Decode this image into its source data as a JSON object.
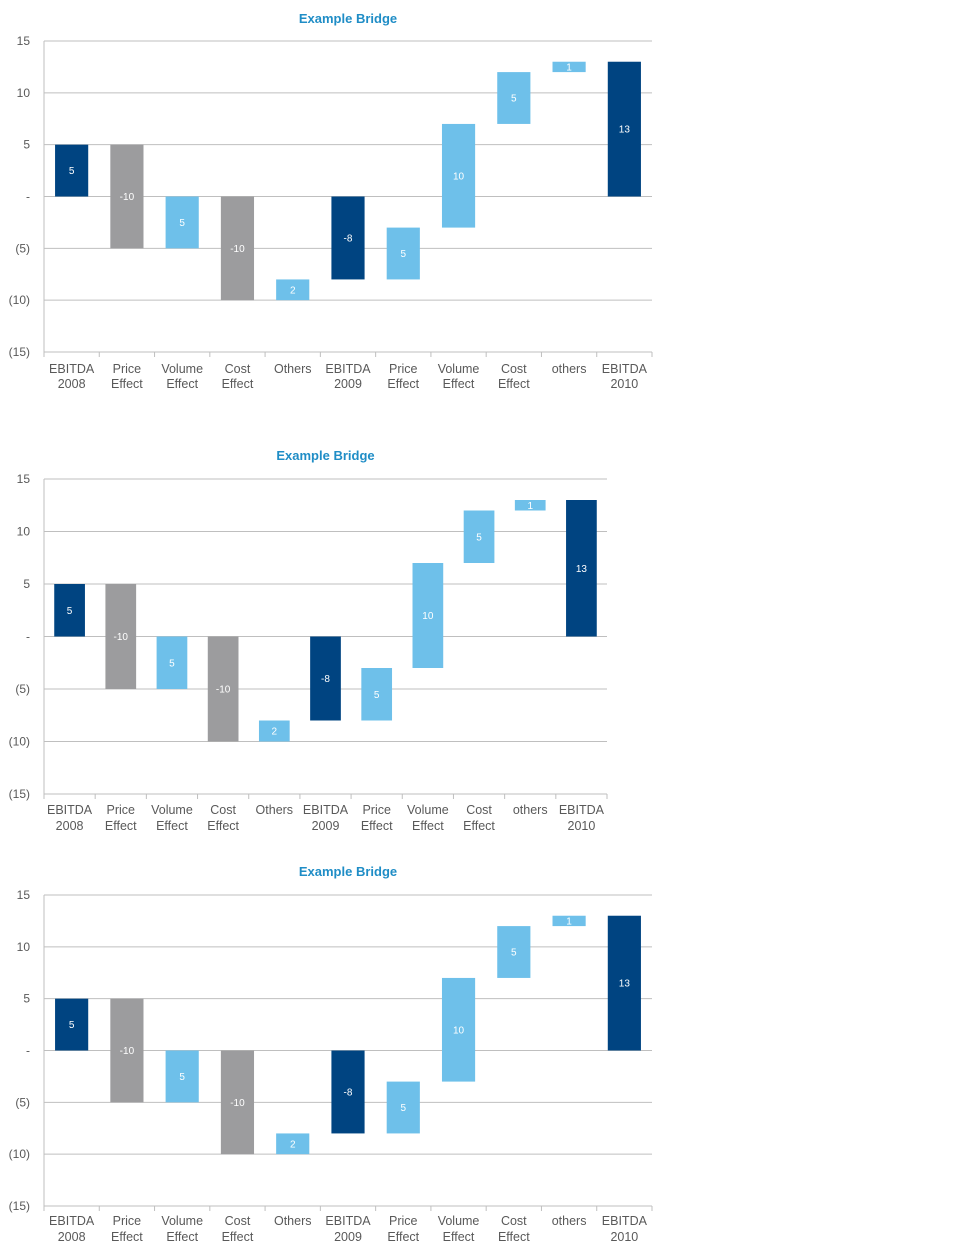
{
  "colors": {
    "title": "#1f8dc6",
    "ebitda": "#004481",
    "negative": "#9c9c9e",
    "positive": "#6ec0ea",
    "grid": "#bfbfbf",
    "text": "#595959"
  },
  "chart_data": [
    {
      "type": "bar",
      "subtype": "waterfall",
      "title": "Example Bridge",
      "ylim": [
        -15,
        15
      ],
      "yticks": [
        15,
        10,
        5,
        0,
        -5,
        -10,
        -15
      ],
      "ytick_labels": [
        "15",
        "10",
        "5",
        "-",
        "(5)",
        "(10)",
        "(15)"
      ],
      "grid": true,
      "categories": [
        [
          "EBITDA",
          "2008"
        ],
        [
          "Price",
          "Effect"
        ],
        [
          "Volume",
          "Effect"
        ],
        [
          "Cost",
          "Effect"
        ],
        [
          "Others"
        ],
        [
          "EBITDA",
          "2009"
        ],
        [
          "Price",
          "Effect"
        ],
        [
          "Volume",
          "Effect"
        ],
        [
          "Cost",
          "Effect"
        ],
        [
          "others"
        ],
        [
          "EBITDA",
          "2010"
        ]
      ],
      "bars": [
        {
          "low": 0,
          "high": 5,
          "label": "5",
          "kind": "ebitda"
        },
        {
          "low": -5,
          "high": 5,
          "label": "-10",
          "kind": "negative"
        },
        {
          "low": -5,
          "high": 0,
          "label": "5",
          "kind": "positive"
        },
        {
          "low": -10,
          "high": 0,
          "label": "-10",
          "kind": "negative"
        },
        {
          "low": -10,
          "high": -8,
          "label": "2",
          "kind": "positive"
        },
        {
          "low": -8,
          "high": 0,
          "label": "-8",
          "kind": "ebitda"
        },
        {
          "low": -8,
          "high": -3,
          "label": "5",
          "kind": "positive"
        },
        {
          "low": -3,
          "high": 7,
          "label": "10",
          "kind": "positive"
        },
        {
          "low": 7,
          "high": 12,
          "label": "5",
          "kind": "positive"
        },
        {
          "low": 12,
          "high": 13,
          "label": "1",
          "kind": "positive"
        },
        {
          "low": 0,
          "high": 13,
          "label": "13",
          "kind": "ebitda"
        }
      ]
    },
    {
      "type": "bar",
      "subtype": "waterfall",
      "title": "Example Bridge",
      "ylim": [
        -15,
        15
      ],
      "yticks": [
        15,
        10,
        5,
        0,
        -5,
        -10,
        -15
      ],
      "ytick_labels": [
        "15",
        "10",
        "5",
        "-",
        "(5)",
        "(10)",
        "(15)"
      ],
      "grid": true,
      "categories": [
        [
          "EBITDA",
          "2008"
        ],
        [
          "Price",
          "Effect"
        ],
        [
          "Volume",
          "Effect"
        ],
        [
          "Cost",
          "Effect"
        ],
        [
          "Others"
        ],
        [
          "EBITDA",
          "2009"
        ],
        [
          "Price",
          "Effect"
        ],
        [
          "Volume",
          "Effect"
        ],
        [
          "Cost",
          "Effect"
        ],
        [
          "others"
        ],
        [
          "EBITDA",
          "2010"
        ]
      ],
      "bars": [
        {
          "low": 0,
          "high": 5,
          "label": "5",
          "kind": "ebitda"
        },
        {
          "low": -5,
          "high": 5,
          "label": "-10",
          "kind": "negative"
        },
        {
          "low": -5,
          "high": 0,
          "label": "5",
          "kind": "positive"
        },
        {
          "low": -10,
          "high": 0,
          "label": "-10",
          "kind": "negative"
        },
        {
          "low": -10,
          "high": -8,
          "label": "2",
          "kind": "positive"
        },
        {
          "low": -8,
          "high": 0,
          "label": "-8",
          "kind": "ebitda"
        },
        {
          "low": -8,
          "high": -3,
          "label": "5",
          "kind": "positive"
        },
        {
          "low": -3,
          "high": 7,
          "label": "10",
          "kind": "positive"
        },
        {
          "low": 7,
          "high": 12,
          "label": "5",
          "kind": "positive"
        },
        {
          "low": 12,
          "high": 13,
          "label": "1",
          "kind": "positive"
        },
        {
          "low": 0,
          "high": 13,
          "label": "13",
          "kind": "ebitda"
        }
      ]
    },
    {
      "type": "bar",
      "subtype": "waterfall",
      "title": "Example Bridge",
      "ylim": [
        -15,
        15
      ],
      "yticks": [
        15,
        10,
        5,
        0,
        -5,
        -10,
        -15
      ],
      "ytick_labels": [
        "15",
        "10",
        "5",
        "-",
        "(5)",
        "(10)",
        "(15)"
      ],
      "grid": true,
      "categories": [
        [
          "EBITDA",
          "2008"
        ],
        [
          "Price",
          "Effect"
        ],
        [
          "Volume",
          "Effect"
        ],
        [
          "Cost",
          "Effect"
        ],
        [
          "Others"
        ],
        [
          "EBITDA",
          "2009"
        ],
        [
          "Price",
          "Effect"
        ],
        [
          "Volume",
          "Effect"
        ],
        [
          "Cost",
          "Effect"
        ],
        [
          "others"
        ],
        [
          "EBITDA",
          "2010"
        ]
      ],
      "bars": [
        {
          "low": 0,
          "high": 5,
          "label": "5",
          "kind": "ebitda"
        },
        {
          "low": -5,
          "high": 5,
          "label": "-10",
          "kind": "negative"
        },
        {
          "low": -5,
          "high": 0,
          "label": "5",
          "kind": "positive"
        },
        {
          "low": -10,
          "high": 0,
          "label": "-10",
          "kind": "negative"
        },
        {
          "low": -10,
          "high": -8,
          "label": "2",
          "kind": "positive"
        },
        {
          "low": -8,
          "high": 0,
          "label": "-8",
          "kind": "ebitda"
        },
        {
          "low": -8,
          "high": -3,
          "label": "5",
          "kind": "positive"
        },
        {
          "low": -3,
          "high": 7,
          "label": "10",
          "kind": "positive"
        },
        {
          "low": 7,
          "high": 12,
          "label": "5",
          "kind": "positive"
        },
        {
          "low": 12,
          "high": 13,
          "label": "1",
          "kind": "positive"
        },
        {
          "low": 0,
          "high": 13,
          "label": "13",
          "kind": "ebitda"
        }
      ]
    }
  ]
}
